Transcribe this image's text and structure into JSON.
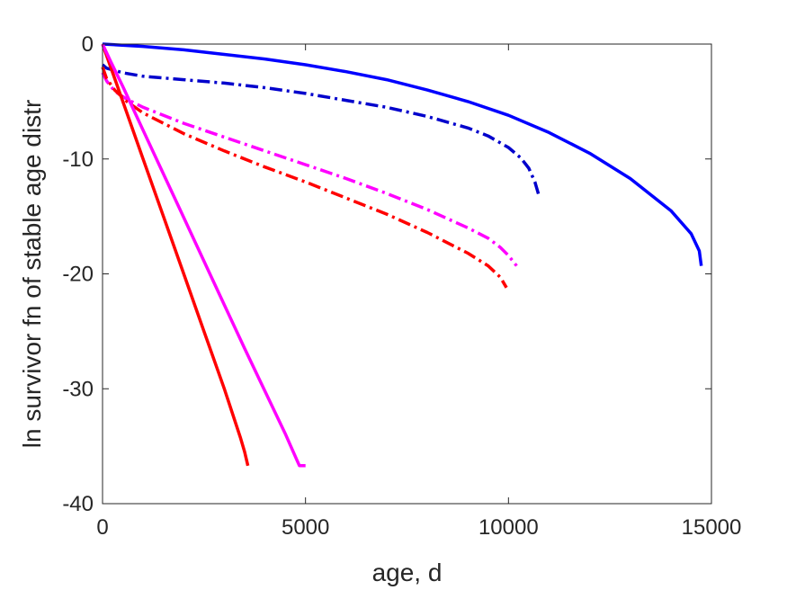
{
  "chart_data": {
    "type": "line",
    "title": "",
    "xlabel": "age, d",
    "ylabel": "ln survivor fn of stable age distr",
    "xlim": [
      0,
      15000
    ],
    "ylim": [
      -40,
      0
    ],
    "xticks": [
      0,
      5000,
      10000,
      15000
    ],
    "xtick_labels": [
      "0",
      "5000",
      "10000",
      "15000"
    ],
    "yticks": [
      0,
      -10,
      -20,
      -30,
      -40
    ],
    "ytick_labels": [
      "0",
      "-10",
      "-20",
      "-30",
      "-40"
    ],
    "grid": false,
    "legend": "none",
    "series": [
      {
        "color": "#0000ff",
        "style": "solid",
        "x": [
          0,
          1000,
          2000,
          3000,
          4000,
          5000,
          6000,
          7000,
          8000,
          9000,
          10000,
          11000,
          12000,
          13000,
          14000,
          14500,
          14700,
          14750
        ],
        "y": [
          0,
          -0.2,
          -0.5,
          -0.9,
          -1.3,
          -1.8,
          -2.4,
          -3.1,
          -4.0,
          -5.0,
          -6.2,
          -7.7,
          -9.5,
          -11.7,
          -14.5,
          -16.5,
          -18.0,
          -19.3
        ]
      },
      {
        "color": "#0000cc",
        "style": "dashdot",
        "x": [
          0,
          100,
          500,
          1000,
          2000,
          3000,
          4000,
          5000,
          6000,
          7000,
          8000,
          9000,
          9500,
          10000,
          10300,
          10500,
          10650,
          10750
        ],
        "y": [
          -1.8,
          -2.1,
          -2.5,
          -2.8,
          -3.1,
          -3.4,
          -3.8,
          -4.3,
          -4.9,
          -5.5,
          -6.3,
          -7.3,
          -8.0,
          -9.0,
          -9.9,
          -10.8,
          -12.0,
          -13.2
        ]
      },
      {
        "color": "#ff00ff",
        "style": "dashdot",
        "x": [
          0,
          100,
          300,
          600,
          1000,
          2000,
          3000,
          4000,
          5000,
          6000,
          7000,
          8000,
          9000,
          9500,
          9800,
          10000,
          10200
        ],
        "y": [
          -2.5,
          -3.2,
          -4.1,
          -4.8,
          -5.5,
          -6.9,
          -8.1,
          -9.3,
          -10.5,
          -11.7,
          -13.0,
          -14.4,
          -16.0,
          -16.9,
          -17.7,
          -18.4,
          -19.3
        ]
      },
      {
        "color": "#ff0000",
        "style": "dashdot",
        "x": [
          0,
          100,
          300,
          600,
          1000,
          2000,
          3000,
          4000,
          5000,
          6000,
          7000,
          8000,
          9000,
          9500,
          9800,
          9950
        ],
        "y": [
          -2.0,
          -3.0,
          -4.0,
          -5.0,
          -6.0,
          -7.8,
          -9.3,
          -10.7,
          -12.0,
          -13.4,
          -14.8,
          -16.4,
          -18.2,
          -19.3,
          -20.3,
          -21.2
        ]
      },
      {
        "color": "#ff0000",
        "style": "solid",
        "x": [
          0,
          200,
          500,
          1000,
          1500,
          2000,
          2500,
          3000,
          3400,
          3500,
          3580
        ],
        "y": [
          0,
          -2.0,
          -5.0,
          -10.0,
          -15.0,
          -20.0,
          -25.0,
          -30.0,
          -34.3,
          -35.5,
          -36.7
        ]
      },
      {
        "color": "#ff00ff",
        "style": "solid",
        "x": [
          0,
          200,
          500,
          1000,
          1500,
          2000,
          2500,
          3000,
          3500,
          4000,
          4500,
          4800,
          4850,
          5000
        ],
        "y": [
          0,
          -1.5,
          -3.7,
          -7.5,
          -11.3,
          -15.1,
          -18.9,
          -22.7,
          -26.5,
          -30.2,
          -33.9,
          -36.3,
          -36.7,
          -36.7
        ]
      }
    ]
  }
}
